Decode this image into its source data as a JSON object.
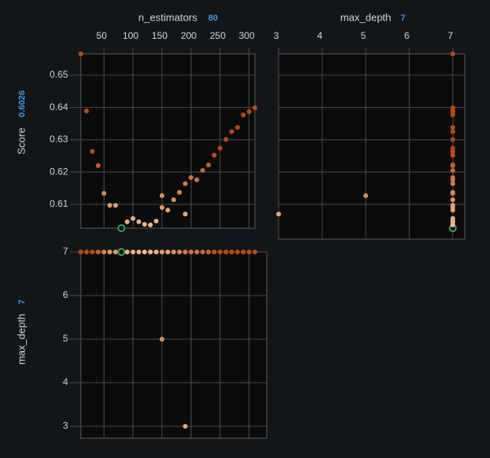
{
  "chart_data": {
    "type": "scatter_matrix",
    "colors": [
      "#f2bb8e",
      "#c2470c"
    ],
    "highlight_color": "#2fa35f",
    "grid": true,
    "dimensions": [
      {
        "name": "n_estimators",
        "selected": 80,
        "lim": [
          10,
          310
        ],
        "ticks": [
          50,
          100,
          150,
          200,
          250,
          300
        ],
        "values": [
          10,
          20,
          30,
          40,
          50,
          60,
          70,
          80,
          90,
          100,
          110,
          120,
          130,
          140,
          150,
          150,
          160,
          170,
          180,
          190,
          190,
          200,
          210,
          220,
          230,
          240,
          250,
          260,
          270,
          280,
          290,
          300,
          310
        ]
      },
      {
        "name": "max_depth",
        "selected": 7,
        "lim": [
          3,
          7
        ],
        "ticks": [
          3,
          4,
          5,
          6,
          7
        ],
        "values": [
          7,
          7,
          7,
          7,
          7,
          7,
          7,
          7,
          7,
          7,
          7,
          7,
          7,
          7,
          5,
          7,
          7,
          7,
          7,
          7,
          3,
          7,
          7,
          7,
          7,
          7,
          7,
          7,
          7,
          7,
          7,
          7,
          7
        ]
      },
      {
        "name": "Score",
        "selected": 0.6026,
        "lim": [
          0.6026,
          0.6566
        ],
        "ticks": [
          0.61,
          0.62,
          0.63,
          0.64,
          0.65
        ],
        "values": [
          0.6566,
          0.6389,
          0.6264,
          0.622,
          0.6134,
          0.6097,
          0.6097,
          0.6026,
          0.6046,
          0.6056,
          0.6046,
          0.6038,
          0.6036,
          0.6048,
          0.6127,
          0.609,
          0.6082,
          0.6114,
          0.6137,
          0.6164,
          0.607,
          0.6183,
          0.6176,
          0.6205,
          0.6222,
          0.6252,
          0.6274,
          0.6301,
          0.6325,
          0.6338,
          0.6377,
          0.6387,
          0.6399
        ]
      }
    ]
  }
}
